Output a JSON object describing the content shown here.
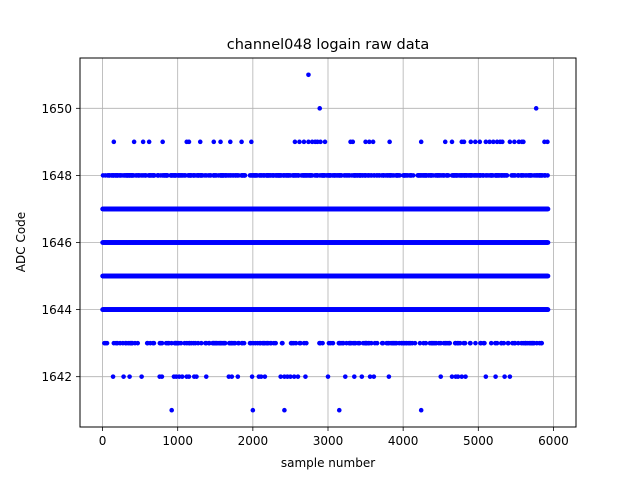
{
  "chart_data": {
    "type": "scatter",
    "title": "channel048 logain raw data",
    "xlabel": "sample number",
    "ylabel": "ADC Code",
    "xlim": [
      -300,
      6300
    ],
    "ylim": [
      1640.5,
      1651.5
    ],
    "xticks": [
      0,
      1000,
      2000,
      3000,
      4000,
      5000,
      6000
    ],
    "yticks": [
      1642,
      1644,
      1646,
      1648,
      1650
    ],
    "grid": true,
    "marker_color": "#0000ff",
    "n_samples": 5930,
    "dense_levels": [
      1644,
      1645,
      1646,
      1647
    ],
    "medium_levels": [
      {
        "y": 1648,
        "density": 0.5
      },
      {
        "y": 1643,
        "density": 0.22
      }
    ],
    "sparse_levels": [
      {
        "y": 1649,
        "x": [
          150,
          420,
          540,
          620,
          800,
          1120,
          1150,
          1300,
          1480,
          1570,
          1700,
          1850,
          1980,
          2560,
          2620,
          2680,
          2740,
          2790,
          2830,
          2860,
          2900,
          2960,
          3300,
          3330,
          3500,
          3550,
          3600,
          3820,
          4240,
          4560,
          4650,
          4780,
          4810,
          4900,
          4960,
          5020,
          5100,
          5150,
          5200,
          5250,
          5290,
          5320,
          5420,
          5480,
          5540,
          5580,
          5600,
          5880,
          5920
        ]
      },
      {
        "y": 1642,
        "x": [
          140,
          280,
          360,
          520,
          760,
          790,
          950,
          980,
          1020,
          1060,
          1120,
          1150,
          1220,
          1250,
          1380,
          1680,
          1720,
          1800,
          1990,
          2080,
          2110,
          2160,
          2370,
          2420,
          2460,
          2500,
          2550,
          2600,
          2700,
          3000,
          3230,
          3350,
          3450,
          3560,
          3610,
          3810,
          4500,
          4650,
          4700,
          4730,
          4780,
          4830,
          5100,
          5230,
          5350,
          5420
        ]
      },
      {
        "y": 1650,
        "x": [
          2890,
          5770
        ]
      },
      {
        "y": 1651,
        "x": [
          2740
        ]
      },
      {
        "y": 1641,
        "x": [
          920,
          2000,
          2420,
          3150,
          4240
        ]
      }
    ]
  }
}
